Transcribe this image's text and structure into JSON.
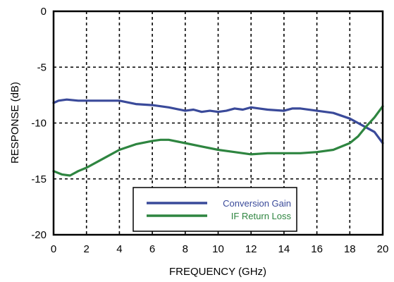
{
  "chart_data": {
    "type": "line",
    "title": "",
    "xlabel": "FREQUENCY (GHz)",
    "ylabel": "RESPONSE (dB)",
    "xlim": [
      0,
      20
    ],
    "ylim": [
      -20,
      0
    ],
    "x_ticks": [
      0,
      2,
      4,
      6,
      8,
      10,
      12,
      14,
      16,
      18,
      20
    ],
    "y_ticks": [
      0,
      -5,
      -10,
      -15,
      -20
    ],
    "x_tick_labels": [
      "0",
      "2",
      "4",
      "6",
      "8",
      "10",
      "12",
      "14",
      "16",
      "18",
      "20"
    ],
    "y_tick_labels": [
      "0",
      "-5",
      "-10",
      "-15",
      "-20"
    ],
    "grid": "dashed",
    "legend": {
      "placement": "bottom-center",
      "entries": [
        "Conversion Gain",
        "IF Return Loss"
      ]
    },
    "series": [
      {
        "name": "Conversion Gain",
        "color": "#3a4a9a",
        "x": [
          0,
          0.3,
          0.8,
          1.5,
          2,
          3,
          4,
          5,
          6,
          7,
          8,
          8.5,
          9,
          9.5,
          10,
          10.5,
          11,
          11.5,
          12,
          12.5,
          13,
          14,
          14.5,
          15,
          16,
          17,
          18,
          18.5,
          19,
          19.5,
          20
        ],
        "y": [
          -8.2,
          -8.0,
          -7.9,
          -8.0,
          -8.0,
          -8.0,
          -8.0,
          -8.3,
          -8.4,
          -8.6,
          -8.9,
          -8.8,
          -9.0,
          -8.9,
          -9.0,
          -8.9,
          -8.7,
          -8.8,
          -8.6,
          -8.7,
          -8.8,
          -8.9,
          -8.7,
          -8.7,
          -8.9,
          -9.1,
          -9.6,
          -10.0,
          -10.4,
          -10.8,
          -11.8
        ]
      },
      {
        "name": "IF Return Loss",
        "color": "#2e8540",
        "x": [
          0,
          0.5,
          1,
          1.5,
          2,
          3,
          4,
          5,
          6,
          6.5,
          7,
          8,
          9,
          10,
          11,
          12,
          13,
          14,
          15,
          16,
          17,
          18,
          18.5,
          19,
          19.5,
          20
        ],
        "y": [
          -14.3,
          -14.6,
          -14.7,
          -14.3,
          -14.0,
          -13.2,
          -12.4,
          -11.9,
          -11.6,
          -11.5,
          -11.5,
          -11.8,
          -12.1,
          -12.4,
          -12.6,
          -12.8,
          -12.7,
          -12.7,
          -12.7,
          -12.6,
          -12.4,
          -11.8,
          -11.2,
          -10.3,
          -9.5,
          -8.5
        ]
      }
    ]
  }
}
